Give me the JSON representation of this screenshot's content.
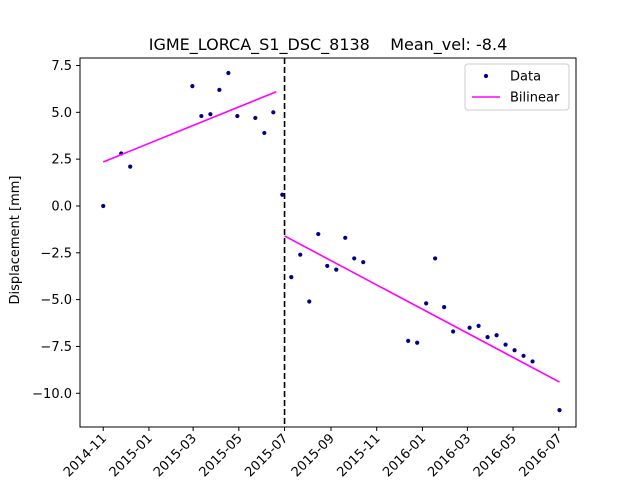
{
  "chart_data": {
    "type": "scatter",
    "title": "IGME_LORCA_S1_DSC_8138    Mean_vel: -8.4",
    "xlabel": "",
    "ylabel": "Displacement [mm]",
    "x_is_date": true,
    "xlim": [
      "2014-10-01",
      "2016-07-24"
    ],
    "ylim": [
      -11.8,
      7.9
    ],
    "x_ticks": [
      "2014-11",
      "2015-01",
      "2015-03",
      "2015-05",
      "2015-07",
      "2015-09",
      "2015-11",
      "2016-01",
      "2016-03",
      "2016-05",
      "2016-07"
    ],
    "y_ticks": [
      7.5,
      5.0,
      2.5,
      0.0,
      -2.5,
      -5.0,
      -7.5,
      -10.0
    ],
    "y_tick_labels": [
      "7.5",
      "5.0",
      "2.5",
      "0.0",
      "−2.5",
      "−5.0",
      "−7.5",
      "−10.0"
    ],
    "grid": false,
    "legend_position": "top-right",
    "breakpoint": {
      "x": "2015-07-01",
      "style": "dashed",
      "color": "#000000"
    },
    "series": [
      {
        "name": "Data",
        "kind": "points",
        "color": "#00008b",
        "x": [
          "2014-11-01",
          "2014-11-25",
          "2014-12-07",
          "2015-02-28",
          "2015-03-12",
          "2015-03-24",
          "2015-04-05",
          "2015-04-17",
          "2015-04-29",
          "2015-05-23",
          "2015-06-04",
          "2015-06-16",
          "2015-06-28",
          "2015-07-10",
          "2015-07-22",
          "2015-08-03",
          "2015-08-15",
          "2015-08-27",
          "2015-09-08",
          "2015-09-20",
          "2015-10-02",
          "2015-10-14",
          "2015-12-13",
          "2015-12-25",
          "2016-01-06",
          "2016-01-18",
          "2016-01-30",
          "2016-02-11",
          "2016-03-04",
          "2016-03-16",
          "2016-03-28",
          "2016-04-09",
          "2016-04-21",
          "2016-05-03",
          "2016-05-15",
          "2016-05-27",
          "2016-07-02"
        ],
        "y": [
          0.0,
          2.8,
          2.1,
          6.4,
          4.8,
          4.9,
          6.2,
          7.1,
          4.8,
          4.7,
          3.9,
          5.0,
          0.6,
          -3.8,
          -2.6,
          -5.1,
          -1.5,
          -3.2,
          -3.4,
          -1.7,
          -2.8,
          -3.0,
          -7.2,
          -7.3,
          -5.2,
          -2.8,
          -5.4,
          -6.7,
          -6.5,
          -6.4,
          -7.0,
          -6.9,
          -7.4,
          -7.7,
          -8.0,
          -8.3,
          -10.9
        ]
      },
      {
        "name": "Bilinear",
        "kind": "line",
        "color": "#ff00ff",
        "segments": [
          {
            "x": [
              "2014-11-01",
              "2015-06-20"
            ],
            "y": [
              2.35,
              6.1
            ]
          },
          {
            "x": [
              "2015-07-01",
              "2016-07-02"
            ],
            "y": [
              -1.6,
              -9.4
            ]
          }
        ]
      }
    ]
  }
}
